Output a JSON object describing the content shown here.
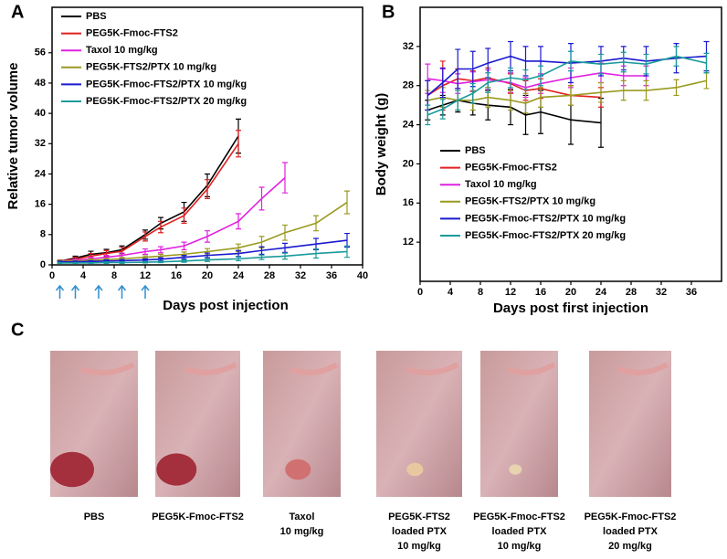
{
  "chart_data": [
    {
      "type": "line",
      "panel": "A",
      "ylabel": "Relative tumor volume",
      "xlabel": "Days post injection",
      "xlim": [
        0,
        40
      ],
      "xticks": [
        0,
        4,
        8,
        12,
        16,
        20,
        24,
        28,
        32,
        36,
        40
      ],
      "ylim": [
        0,
        68
      ],
      "yticks": [
        0,
        8,
        16,
        24,
        32,
        40,
        48,
        56
      ],
      "legend": "upper left",
      "injection_days": [
        1,
        3,
        6,
        9,
        12
      ],
      "injection_color": "#2f8fd0",
      "series": [
        {
          "name": "PBS",
          "color": "#000000",
          "x": [
            1,
            3,
            5,
            7,
            9,
            12,
            14,
            17,
            20,
            24
          ],
          "values": [
            1,
            1.8,
            2.8,
            3.2,
            4,
            8,
            11,
            14,
            21,
            34
          ],
          "errors": [
            0.3,
            0.5,
            0.8,
            0.9,
            1,
            1.2,
            1.5,
            2.5,
            3,
            4.5
          ]
        },
        {
          "name": "PEG5K-Fmoc-FTS2",
          "color": "#e02020",
          "x": [
            1,
            3,
            5,
            7,
            9,
            12,
            14,
            17,
            20,
            24
          ],
          "values": [
            1,
            1.5,
            2.3,
            3,
            3.6,
            7.5,
            10,
            13,
            20,
            32
          ],
          "errors": [
            0.3,
            0.5,
            0.7,
            0.8,
            1,
            1.2,
            1.5,
            2,
            2.5,
            3.5
          ]
        },
        {
          "name": "Taxol 10 mg/kg",
          "color": "#e020e0",
          "x": [
            1,
            3,
            5,
            7,
            9,
            12,
            14,
            17,
            20,
            24,
            27,
            30
          ],
          "values": [
            1,
            1.2,
            1.6,
            2,
            2.5,
            3.5,
            4,
            5,
            7.5,
            11.5,
            17.5,
            23
          ],
          "errors": [
            0.2,
            0.3,
            0.4,
            0.5,
            0.6,
            0.7,
            0.8,
            1,
            1.5,
            2,
            3,
            4
          ]
        },
        {
          "name": "PEG5K-FTS2/PTX 10 mg/kg",
          "color": "#9a9a20",
          "x": [
            1,
            3,
            5,
            7,
            9,
            12,
            14,
            17,
            20,
            24,
            27,
            30,
            34,
            38
          ],
          "values": [
            1,
            1,
            1.2,
            1.4,
            1.6,
            2,
            2.3,
            2.8,
            3.5,
            4.5,
            6,
            8.5,
            11,
            16.5
          ],
          "errors": [
            0.2,
            0.2,
            0.3,
            0.3,
            0.4,
            0.4,
            0.5,
            0.6,
            0.8,
            1,
            1.5,
            2,
            2,
            3
          ]
        },
        {
          "name": "PEG5K-Fmoc-FTS2/PTX 10 mg/kg",
          "color": "#1a1ad0",
          "x": [
            1,
            3,
            5,
            7,
            9,
            12,
            14,
            17,
            20,
            24,
            27,
            30,
            34,
            38
          ],
          "values": [
            0.8,
            0.8,
            0.9,
            1,
            1.1,
            1.3,
            1.5,
            2,
            2.5,
            3,
            3.8,
            4.5,
            5.5,
            6.5
          ],
          "errors": [
            0.2,
            0.2,
            0.2,
            0.3,
            0.3,
            0.3,
            0.4,
            0.5,
            0.6,
            0.8,
            1,
            1.2,
            1.5,
            1.8
          ]
        },
        {
          "name": "PEG5K-Fmoc-FTS2/PTX 20 mg/kg",
          "color": "#1a9a9a",
          "x": [
            1,
            3,
            5,
            7,
            9,
            12,
            14,
            17,
            20,
            24,
            27,
            30,
            34,
            38
          ],
          "values": [
            0.5,
            0.5,
            0.5,
            0.6,
            0.6,
            0.7,
            0.8,
            1,
            1.3,
            1.6,
            2,
            2.3,
            3,
            3.5
          ],
          "errors": [
            0.1,
            0.1,
            0.1,
            0.2,
            0.2,
            0.2,
            0.2,
            0.3,
            0.4,
            0.5,
            0.6,
            0.8,
            1.2,
            1.5
          ]
        }
      ]
    },
    {
      "type": "line",
      "panel": "B",
      "ylabel": "Body weight  (g)",
      "xlabel": "Days post first injection",
      "xlim": [
        0,
        40
      ],
      "xticks": [
        0,
        4,
        8,
        12,
        16,
        20,
        24,
        28,
        32,
        36
      ],
      "ylim": [
        8,
        36
      ],
      "yticks": [
        12,
        16,
        20,
        24,
        28,
        32
      ],
      "legend": "lower left",
      "series": [
        {
          "name": "PBS",
          "color": "#000000",
          "x": [
            1,
            3,
            5,
            7,
            9,
            12,
            14,
            16,
            20,
            24
          ],
          "values": [
            25.5,
            26,
            26.5,
            26.2,
            26,
            25.8,
            25,
            25.3,
            24.5,
            24.2
          ],
          "errors": [
            1,
            1,
            1.2,
            1.2,
            1.5,
            1.8,
            2,
            2.2,
            2.5,
            2.5
          ]
        },
        {
          "name": "PEG5K-Fmoc-FTS2",
          "color": "#e02020",
          "x": [
            1,
            3,
            5,
            7,
            9,
            12,
            14,
            16,
            20,
            24
          ],
          "values": [
            27,
            28,
            28.7,
            28.5,
            28.8,
            28.2,
            27.5,
            27.7,
            27,
            26.8
          ],
          "errors": [
            1.5,
            2.5,
            1,
            1,
            1,
            1,
            1,
            1,
            1,
            1
          ]
        },
        {
          "name": "Taxol 10 mg/kg",
          "color": "#e020e0",
          "x": [
            1,
            3,
            5,
            7,
            9,
            12,
            14,
            16,
            20,
            24,
            27,
            30
          ],
          "values": [
            28.7,
            28.5,
            28.2,
            28.4,
            28.6,
            28.3,
            27.8,
            28.2,
            28.8,
            29.3,
            29,
            29
          ],
          "errors": [
            1.5,
            1.2,
            1,
            1,
            1,
            1,
            1,
            1,
            1,
            1,
            1,
            1
          ]
        },
        {
          "name": "PEG5K-FTS2/PTX 10 mg/kg",
          "color": "#9a9a20",
          "x": [
            1,
            3,
            5,
            7,
            9,
            12,
            14,
            16,
            20,
            24,
            27,
            30,
            34,
            38
          ],
          "values": [
            26.5,
            26.8,
            26.5,
            26.5,
            26.8,
            26.5,
            26.2,
            26.8,
            27,
            27.3,
            27.5,
            27.5,
            27.8,
            28.5
          ],
          "errors": [
            1,
            1,
            1,
            1,
            1,
            1,
            1,
            1,
            1,
            1,
            1,
            1,
            0.8,
            0.8
          ]
        },
        {
          "name": "PEG5K-Fmoc-FTS2/PTX 10 mg/kg",
          "color": "#1a1ad0",
          "x": [
            1,
            3,
            5,
            7,
            9,
            12,
            14,
            16,
            20,
            24,
            27,
            30,
            34,
            38
          ],
          "values": [
            27,
            28.3,
            29.7,
            29.7,
            30.3,
            31,
            30.5,
            30.5,
            30.3,
            30.5,
            30.8,
            30.5,
            30.8,
            31
          ],
          "errors": [
            1.5,
            1.5,
            2,
            1.8,
            1.5,
            1.5,
            1.5,
            1.5,
            2,
            1.5,
            1.2,
            1.5,
            1.5,
            1.5
          ]
        },
        {
          "name": "PEG5K-Fmoc-FTS2/PTX 20 mg/kg",
          "color": "#1a9a9a",
          "x": [
            1,
            3,
            5,
            7,
            9,
            12,
            14,
            16,
            20,
            24,
            27,
            30,
            34,
            38
          ],
          "values": [
            25,
            25.6,
            26.5,
            27.2,
            28.3,
            28.8,
            28.6,
            29,
            30.5,
            30.2,
            30.4,
            30.2,
            31,
            30.3
          ],
          "errors": [
            1,
            1,
            1,
            1,
            1,
            1,
            1,
            1,
            1,
            1,
            1,
            1,
            1,
            1
          ]
        }
      ]
    }
  ],
  "panel_c": {
    "label": "C",
    "items": [
      {
        "lines": [
          "PBS"
        ]
      },
      {
        "lines": [
          "PEG5K-Fmoc-FTS2"
        ]
      },
      {
        "lines": [
          "Taxol",
          "10 mg/kg"
        ]
      },
      {
        "lines": [
          "PEG5K-FTS2",
          "loaded PTX",
          "10 mg/kg"
        ]
      },
      {
        "lines": [
          "PEG5K-Fmoc-FTS2",
          "loaded PTX",
          "10 mg/kg"
        ]
      },
      {
        "lines": [
          "PEG5K-Fmoc-FTS2",
          "loaded PTX",
          "20 mg/kg"
        ]
      }
    ]
  }
}
